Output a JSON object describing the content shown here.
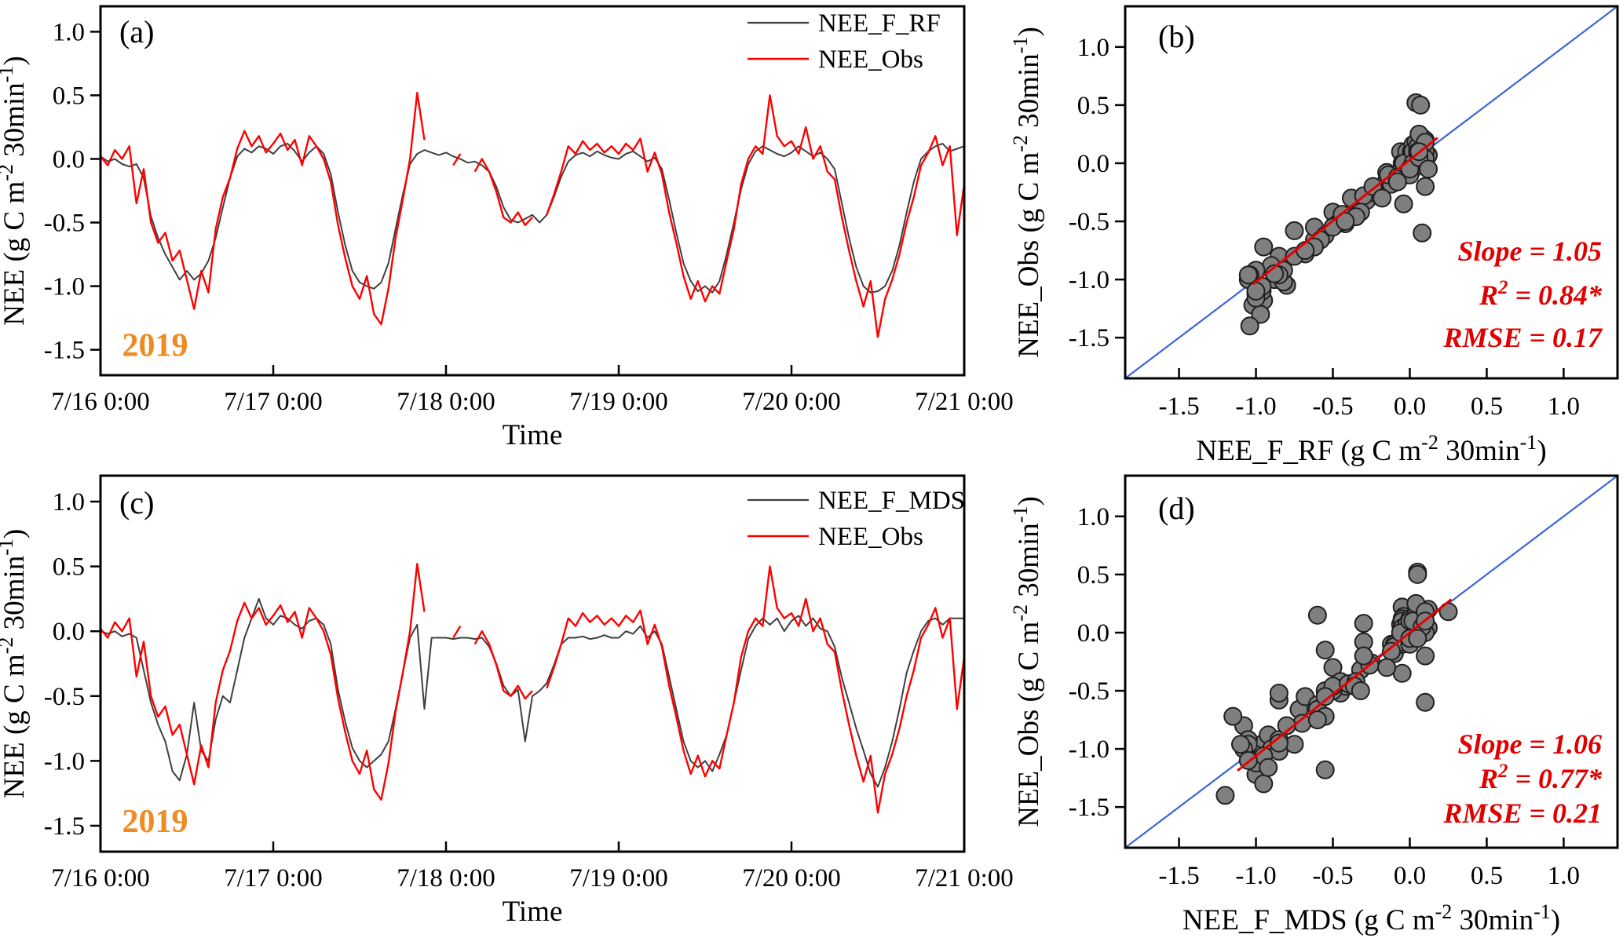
{
  "figure": {
    "year_label": "2019",
    "colors": {
      "model_line": "#3f3f3f",
      "obs_line": "#ff0000",
      "one_to_one": "#3c64d9",
      "regression": "#e60000",
      "stats_text": "#e00000",
      "year": "#ee8b22",
      "axis": "#000000",
      "scatter_fill": "#7f7f7f",
      "scatter_stroke": "#1f1f1f"
    }
  },
  "chart_data": [
    {
      "id": "a",
      "type": "line",
      "panel_letter": "(a)",
      "xlim": [
        0,
        120
      ],
      "ylim": [
        -1.7,
        1.2
      ],
      "x_ticks": [
        0,
        24,
        48,
        72,
        96,
        120
      ],
      "x_tick_labels": [
        "7/16 0:00",
        "7/17 0:00",
        "7/18 0:00",
        "7/19 0:00",
        "7/20 0:00",
        "7/21 0:00"
      ],
      "y_ticks": [
        1.0,
        0.5,
        0.0,
        -0.5,
        -1.0,
        -1.5
      ],
      "y_tick_labels": [
        "1.0",
        "0.5",
        "0.0",
        "-0.5",
        "-1.0",
        "-1.5"
      ],
      "xlabel_parts": [
        {
          "t": "Time"
        }
      ],
      "ylabel_parts": [
        {
          "t": "NEE (g C m"
        },
        {
          "t": "-2",
          "sup": true
        },
        {
          "t": " 30min"
        },
        {
          "t": "-1",
          "sup": true
        },
        {
          "t": ")"
        }
      ],
      "annotation": {
        "text": "2019",
        "x": 3,
        "y": -1.55,
        "color_key": "year"
      },
      "legend": [
        "NEE_F_RF",
        "NEE_Obs"
      ],
      "series": [
        {
          "name": "NEE_F_RF",
          "color_key": "model_line",
          "width": 2,
          "values": [
            0.02,
            -0.02,
            0,
            -0.04,
            -0.06,
            -0.04,
            -0.15,
            -0.45,
            -0.62,
            -0.75,
            -0.85,
            -0.95,
            -0.88,
            -0.95,
            -0.9,
            -0.8,
            -0.62,
            -0.38,
            -0.15,
            0.02,
            0.08,
            0.05,
            0.1,
            0.08,
            0.04,
            0.1,
            0.12,
            0.06,
            -0.02,
            0.05,
            0.1,
            0.04,
            -0.12,
            -0.42,
            -0.68,
            -0.88,
            -0.97,
            -1,
            -1.02,
            -0.97,
            -0.82,
            -0.55,
            -0.28,
            -0.04,
            0.04,
            0.07,
            0.05,
            0.03,
            0.05,
            0.02,
            0,
            -0.03,
            -0.02,
            -0.05,
            -0.1,
            -0.22,
            -0.38,
            -0.48,
            -0.5,
            -0.47,
            -0.44,
            -0.5,
            -0.44,
            -0.3,
            -0.14,
            -0.02,
            0.03,
            0.05,
            0.02,
            0.06,
            0.03,
            0.01,
            0,
            0.04,
            0.06,
            0.02,
            -0.02,
            0.01,
            -0.08,
            -0.32,
            -0.58,
            -0.82,
            -0.96,
            -1.04,
            -1,
            -1.05,
            -0.96,
            -0.75,
            -0.5,
            -0.24,
            -0.04,
            0.06,
            0.1,
            0.07,
            0.04,
            0.02,
            0.05,
            0.1,
            0.06,
            0.02,
            0.05,
            0,
            -0.08,
            -0.35,
            -0.62,
            -0.85,
            -1,
            -1.05,
            -1.04,
            -1,
            -0.88,
            -0.68,
            -0.42,
            -0.18,
            0,
            0.06,
            0.1,
            0.12,
            0.06,
            0.08,
            0.1
          ]
        },
        {
          "name": "NEE_Obs",
          "color_key": "obs_line",
          "width": 2.4,
          "values": [
            0.02,
            -0.05,
            0.07,
            0,
            0.1,
            -0.35,
            -0.08,
            -0.5,
            -0.66,
            -0.58,
            -0.8,
            -0.72,
            -0.95,
            -1.18,
            -0.88,
            -1.05,
            -0.55,
            -0.3,
            -0.15,
            0.08,
            0.22,
            0.1,
            0.18,
            0.05,
            0.12,
            0.2,
            0.07,
            0.15,
            -0.05,
            0.18,
            0.1,
            0,
            -0.18,
            -0.52,
            -0.78,
            -1,
            -1.1,
            -0.92,
            -1.22,
            -1.3,
            -1.02,
            -0.62,
            -0.32,
            0,
            0.52,
            0.15,
            null,
            0,
            null,
            -0.05,
            0.04,
            null,
            -0.1,
            0,
            -0.1,
            -0.26,
            -0.46,
            -0.5,
            -0.42,
            -0.52,
            -0.46,
            null,
            -0.44,
            -0.28,
            -0.1,
            0.1,
            0.04,
            0.14,
            0.07,
            0.12,
            0.05,
            0.1,
            0.04,
            0.12,
            0.07,
            0.16,
            -0.1,
            0.05,
            -0.12,
            -0.42,
            -0.66,
            -0.92,
            -1.1,
            -0.96,
            -1.12,
            -1,
            -1.06,
            -0.8,
            -0.55,
            -0.2,
            0,
            0.1,
            0.04,
            0.5,
            0.18,
            0.1,
            0.14,
            0.04,
            0.25,
            0,
            0.1,
            -0.1,
            -0.16,
            -0.46,
            -0.72,
            -0.96,
            -1.16,
            -0.96,
            -1.4,
            -1.1,
            -0.95,
            -0.75,
            -0.5,
            -0.3,
            -0.05,
            0.05,
            0.18,
            -0.05,
            0.1,
            -0.6,
            -0.2
          ]
        }
      ]
    },
    {
      "id": "b",
      "type": "scatter",
      "panel_letter": "(b)",
      "xlim": [
        -1.85,
        1.35
      ],
      "ylim": [
        -1.85,
        1.35
      ],
      "x_ticks": [
        -1.5,
        -1.0,
        -0.5,
        0.0,
        0.5,
        1.0
      ],
      "x_tick_labels": [
        "-1.5",
        "-1.0",
        "-0.5",
        "0.0",
        "0.5",
        "1.0"
      ],
      "y_ticks": [
        -1.5,
        -1.0,
        -0.5,
        0.0,
        0.5,
        1.0
      ],
      "y_tick_labels": [
        "-1.5",
        "-1.0",
        "-0.5",
        "0.0",
        "0.5",
        "1.0"
      ],
      "xlabel_parts": [
        {
          "t": "NEE_F_RF  (g C m"
        },
        {
          "t": "-2",
          "sup": true
        },
        {
          "t": " 30min"
        },
        {
          "t": "-1",
          "sup": true
        },
        {
          "t": ")"
        }
      ],
      "ylabel_parts": [
        {
          "t": "NEE_Obs  (g C m"
        },
        {
          "t": "-2",
          "sup": true
        },
        {
          "t": " 30min"
        },
        {
          "t": "-1",
          "sup": true
        },
        {
          "t": ")"
        }
      ],
      "pairs_from": {
        "x_chart": "a",
        "x_series": "NEE_F_RF",
        "y_chart": "a",
        "y_series": "NEE_Obs"
      },
      "one_to_one_color_key": "one_to_one",
      "regression": {
        "slope": 1.05,
        "intercept": 0.03,
        "x1": -1.02,
        "x2": 0.18,
        "color_key": "regression"
      },
      "stats_lines": [
        [
          {
            "t": "Slope = 1.05"
          }
        ],
        [
          {
            "t": "R"
          },
          {
            "t": "2",
            "sup": true
          },
          {
            "t": " = 0.84*"
          }
        ],
        [
          {
            "t": "RMSE = 0.17"
          }
        ]
      ]
    },
    {
      "id": "c",
      "type": "line",
      "panel_letter": "(c)",
      "xlim": [
        0,
        120
      ],
      "ylim": [
        -1.7,
        1.2
      ],
      "x_ticks": [
        0,
        24,
        48,
        72,
        96,
        120
      ],
      "x_tick_labels": [
        "7/16 0:00",
        "7/17 0:00",
        "7/18 0:00",
        "7/19 0:00",
        "7/20 0:00",
        "7/21 0:00"
      ],
      "y_ticks": [
        1.0,
        0.5,
        0.0,
        -0.5,
        -1.0,
        -1.5
      ],
      "y_tick_labels": [
        "1.0",
        "0.5",
        "0.0",
        "-0.5",
        "-1.0",
        "-1.5"
      ],
      "xlabel_parts": [
        {
          "t": "Time"
        }
      ],
      "ylabel_parts": [
        {
          "t": "NEE (g C m"
        },
        {
          "t": "-2",
          "sup": true
        },
        {
          "t": " 30min"
        },
        {
          "t": "-1",
          "sup": true
        },
        {
          "t": ")"
        }
      ],
      "annotation": {
        "text": "2019",
        "x": 3,
        "y": -1.55,
        "color_key": "year"
      },
      "legend": [
        "NEE_F_MDS",
        "NEE_Obs"
      ],
      "series": [
        {
          "name": "NEE_F_MDS",
          "color_key": "model_line",
          "width": 2,
          "values": [
            0,
            -0.02,
            0,
            -0.04,
            -0.02,
            -0.05,
            -0.3,
            -0.55,
            -0.72,
            -0.85,
            -1.08,
            -1.15,
            -0.95,
            -0.55,
            -0.92,
            -1,
            -0.68,
            -0.5,
            -0.55,
            -0.3,
            -0.05,
            0.1,
            0.25,
            0.1,
            0.05,
            0.12,
            0.1,
            0.05,
            0.02,
            0.08,
            0.1,
            0.05,
            -0.1,
            -0.45,
            -0.7,
            -0.9,
            -1,
            -1.05,
            -1,
            -0.95,
            -0.85,
            -0.6,
            -0.32,
            -0.05,
            0.05,
            -0.6,
            -0.05,
            -0.05,
            -0.05,
            -0.06,
            -0.05,
            -0.05,
            -0.06,
            -0.05,
            -0.12,
            -0.25,
            -0.42,
            -0.5,
            -0.45,
            -0.85,
            -0.5,
            -0.46,
            -0.4,
            -0.26,
            -0.1,
            -0.05,
            -0.05,
            -0.04,
            -0.06,
            -0.05,
            -0.03,
            -0.05,
            -0.05,
            0,
            -0.02,
            0.04,
            -0.05,
            0,
            -0.1,
            -0.35,
            -0.6,
            -0.85,
            -1,
            -1.05,
            -1,
            -1.08,
            -0.95,
            -0.8,
            -0.55,
            -0.3,
            -0.06,
            0.04,
            0.1,
            0.05,
            0.1,
            0,
            0.08,
            0.12,
            0.04,
            0.1,
            0.02,
            0,
            -0.12,
            -0.36,
            -0.55,
            -0.75,
            -0.92,
            -1.1,
            -1.2,
            -1.05,
            -0.85,
            -0.6,
            -0.32,
            -0.15,
            0,
            0.08,
            0.1,
            0.05,
            0.1,
            0.1,
            0.1
          ]
        },
        {
          "name": "NEE_Obs",
          "color_key": "obs_line",
          "width": 2.4,
          "values_from": {
            "chart": "a",
            "series": "NEE_Obs"
          }
        }
      ]
    },
    {
      "id": "d",
      "type": "scatter",
      "panel_letter": "(d)",
      "xlim": [
        -1.85,
        1.35
      ],
      "ylim": [
        -1.85,
        1.35
      ],
      "x_ticks": [
        -1.5,
        -1.0,
        -0.5,
        0.0,
        0.5,
        1.0
      ],
      "x_tick_labels": [
        "-1.5",
        "-1.0",
        "-0.5",
        "0.0",
        "0.5",
        "1.0"
      ],
      "y_ticks": [
        -1.5,
        -1.0,
        -0.5,
        0.0,
        0.5,
        1.0
      ],
      "y_tick_labels": [
        "-1.5",
        "-1.0",
        "-0.5",
        "0.0",
        "0.5",
        "1.0"
      ],
      "xlabel_parts": [
        {
          "t": "NEE_F_MDS (g C m"
        },
        {
          "t": "-2",
          "sup": true
        },
        {
          "t": " 30min"
        },
        {
          "t": "-1",
          "sup": true
        },
        {
          "t": ")"
        }
      ],
      "ylabel_parts": [
        {
          "t": "NEE_Obs  (g C m"
        },
        {
          "t": "-2",
          "sup": true
        },
        {
          "t": " 30min"
        },
        {
          "t": "-1",
          "sup": true
        },
        {
          "t": ")"
        }
      ],
      "pairs_from": {
        "x_chart": "c",
        "x_series": "NEE_F_MDS",
        "y_chart": "a",
        "y_series": "NEE_Obs"
      },
      "one_to_one_color_key": "one_to_one",
      "regression": {
        "slope": 1.06,
        "intercept": 0.0,
        "x1": -1.12,
        "x2": 0.27,
        "color_key": "regression"
      },
      "stats_lines": [
        [
          {
            "t": "Slope = 1.06"
          }
        ],
        [
          {
            "t": "R"
          },
          {
            "t": "2",
            "sup": true
          },
          {
            "t": " = 0.77*"
          }
        ],
        [
          {
            "t": "RMSE = 0.21"
          }
        ]
      ]
    }
  ]
}
